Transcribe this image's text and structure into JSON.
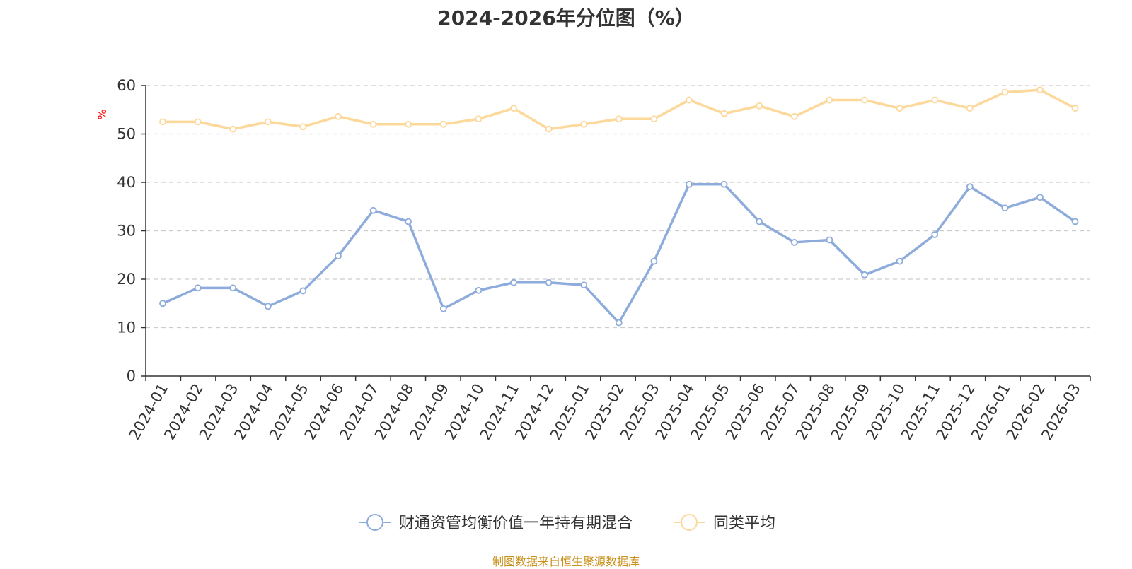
{
  "title": "2024-2026年分位图（%）",
  "source": "制图数据来自恒生聚源数据库",
  "chart_data": {
    "type": "line",
    "title": "2024-2026年分位图（%）",
    "ylabel": "%",
    "xlabel": "",
    "ylim": [
      0,
      60
    ],
    "yticks": [
      0,
      10,
      20,
      30,
      40,
      50,
      60
    ],
    "grid": true,
    "legend_position": "bottom-center",
    "categories": [
      "2024-01",
      "2024-02",
      "2024-03",
      "2024-04",
      "2024-05",
      "2024-06",
      "2024-07",
      "2024-08",
      "2024-09",
      "2024-10",
      "2024-11",
      "2024-12",
      "2025-01",
      "2025-02",
      "2025-03",
      "2025-04",
      "2025-05",
      "2025-06",
      "2025-07",
      "2025-08",
      "2025-09",
      "2025-10",
      "2025-11",
      "2025-12",
      "2026-01",
      "2026-02",
      "2026-03"
    ],
    "series": [
      {
        "name": "财通资管均衡价值一年持有期混合",
        "color": "#8eacdb",
        "values": [
          15.0,
          18.2,
          18.2,
          14.4,
          17.6,
          24.8,
          34.2,
          31.9,
          13.9,
          17.7,
          19.3,
          19.3,
          18.8,
          11.0,
          23.7,
          39.6,
          39.6,
          31.9,
          27.6,
          28.1,
          20.9,
          23.7,
          29.2,
          39.1,
          34.7,
          36.9,
          31.9
        ]
      },
      {
        "name": "同类平均",
        "color": "#fcd89a",
        "values": [
          52.5,
          52.5,
          51.0,
          52.5,
          51.5,
          53.6,
          52.0,
          52.0,
          52.0,
          53.1,
          55.3,
          51.0,
          52.0,
          53.1,
          53.1,
          57.0,
          54.2,
          55.8,
          53.6,
          57.0,
          57.0,
          55.3,
          57.0,
          55.3,
          58.6,
          59.1,
          55.3
        ]
      }
    ]
  },
  "colors": {
    "axis": "#333333",
    "grid": "#cccccc",
    "ylabel": "#ff0000",
    "source": "#c9911c"
  }
}
